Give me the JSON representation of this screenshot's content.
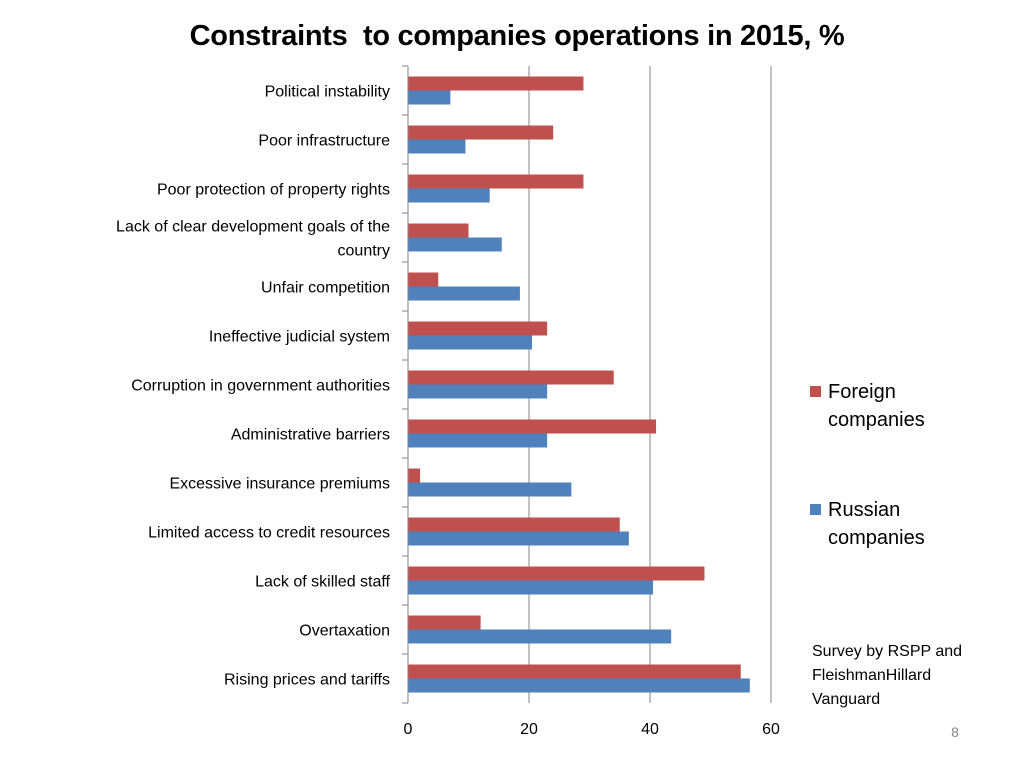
{
  "slide": {
    "title": "Constraints  to companies operations in 2015, %",
    "source_line1": "Survey by RSPP and",
    "source_line2": "FleishmanHillard",
    "source_line3": "Vanguard",
    "page_number": "8"
  },
  "colors": {
    "foreign": "#C0504D",
    "russian": "#4F81BD",
    "axis": "#868686",
    "gridline": "#868686"
  },
  "legend": {
    "foreign_line1": "Foreign",
    "foreign_line2": "companies",
    "russian_line1": "Russian",
    "russian_line2": "companies"
  },
  "chart_data": {
    "type": "bar",
    "orientation": "horizontal",
    "title": "Constraints  to companies operations in 2015, %",
    "xlabel": "",
    "ylabel": "",
    "xlim": [
      0,
      60
    ],
    "xticks": [
      "0",
      "20",
      "40",
      "60"
    ],
    "gridlines": true,
    "legend_position": "right",
    "categories": [
      [
        "Political instability"
      ],
      [
        "Poor infrastructure"
      ],
      [
        "Poor protection of property rights"
      ],
      [
        "Lack of clear development goals of the",
        "country"
      ],
      [
        "Unfair competition"
      ],
      [
        "Ineffective judicial system"
      ],
      [
        "Corruption in government authorities"
      ],
      [
        "Administrative barriers"
      ],
      [
        "Excessive insurance premiums"
      ],
      [
        "Limited access to credit resources"
      ],
      [
        "Lack of skilled staff"
      ],
      [
        "Overtaxation"
      ],
      [
        "Rising prices and tariffs"
      ]
    ],
    "series": [
      {
        "name": "Foreign companies",
        "values": [
          29,
          24,
          29,
          10,
          5,
          23,
          34,
          41,
          2,
          35,
          49,
          12,
          55
        ]
      },
      {
        "name": "Russian companies",
        "values": [
          7,
          9.5,
          13.5,
          15.5,
          18.5,
          20.5,
          23,
          23,
          27,
          36.5,
          40.5,
          43.5,
          56.5
        ]
      }
    ]
  }
}
